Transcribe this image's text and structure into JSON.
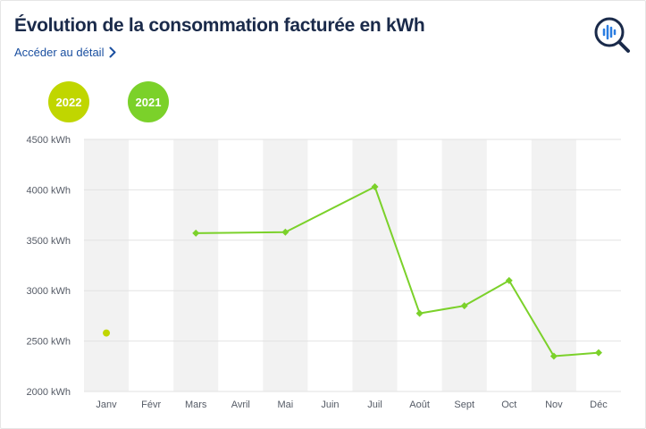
{
  "header": {
    "title": "Évolution de la consommation facturée en kWh",
    "detail_link": "Accéder au détail",
    "icon": "search-chart-icon"
  },
  "years": [
    {
      "label": "2022",
      "color": "#c0d600"
    },
    {
      "label": "2021",
      "color": "#7bd12a"
    }
  ],
  "chart_data": {
    "type": "line",
    "categories": [
      "Janv",
      "Févr",
      "Mars",
      "Avril",
      "Mai",
      "Juin",
      "Juil",
      "Août",
      "Sept",
      "Oct",
      "Nov",
      "Déc"
    ],
    "y_ticks": [
      "2000 kWh",
      "2500 kWh",
      "3000 kWh",
      "3500 kWh",
      "4000 kWh",
      "4500 kWh"
    ],
    "ylim": [
      2000,
      4500
    ],
    "grid": true,
    "alternating_column_shading": true,
    "series": [
      {
        "name": "2022",
        "color": "#c0d600",
        "values": [
          2580,
          null,
          null,
          null,
          null,
          null,
          null,
          null,
          null,
          null,
          null,
          null
        ]
      },
      {
        "name": "2021",
        "color": "#7bd12a",
        "values": [
          null,
          null,
          3570,
          null,
          3580,
          null,
          4030,
          2775,
          2850,
          3100,
          2350,
          2385
        ]
      }
    ]
  }
}
